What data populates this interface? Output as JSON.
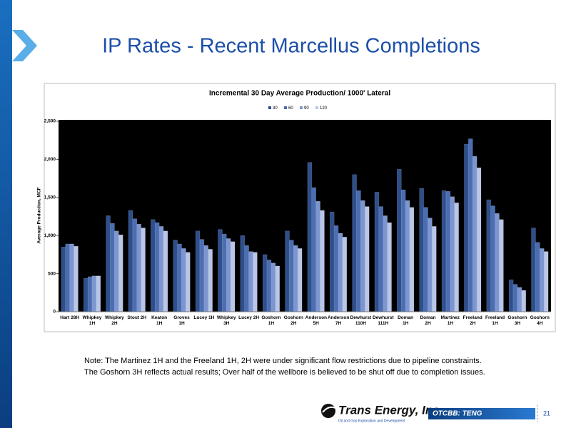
{
  "slide": {
    "title": "IP Rates - Recent Marcellus Completions",
    "note": [
      "Note: The Martinez 1H and the Freeland 1H, 2H were under significant flow restrictions due to pipeline constraints.",
      "The Goshorn 3H reflects actual results; Over half of the wellbore is believed to be shut off due to completion issues."
    ],
    "logo": {
      "name": "Trans Energy, Inc.",
      "tagline": "Oil and Gas Exploration and Development"
    },
    "ticker": "OTCBB: TENG",
    "page_number": 21
  },
  "chart_data": {
    "type": "bar",
    "title": "Incremental 30 Day Average Production/ 1000' Lateral",
    "y_label": "Average Production, MCF",
    "categories": [
      "Hart 28H",
      "Whipkey 1H",
      "Whipkey 2H",
      "Stout 2H",
      "Keaton 1H",
      "Groves 1H",
      "Lucey 1H",
      "Whipkey 3H",
      "Lucey 2H",
      "Goshorn 1H",
      "Goshorn 2H",
      "Anderson 5H",
      "Anderson 7H",
      "Dewhurst 110H",
      "Dewhurst 111H",
      "Doman 1H",
      "Doman 2H",
      "Martinez 1H",
      "Freeland 2H",
      "Freeland 1H",
      "Goshorn 3H",
      "Goshorn 4H"
    ],
    "series": [
      {
        "name": "30",
        "color": "#2e4f8c",
        "values": [
          850,
          440,
          1260,
          1330,
          1210,
          940,
          1060,
          1080,
          1000,
          750,
          1060,
          1960,
          1310,
          1800,
          1570,
          1870,
          1620,
          1590,
          2200,
          1470,
          420,
          1100
        ]
      },
      {
        "name": "60",
        "color": "#4a6db3",
        "values": [
          890,
          460,
          1160,
          1220,
          1170,
          890,
          950,
          1020,
          870,
          680,
          940,
          1630,
          1130,
          1590,
          1380,
          1600,
          1370,
          1580,
          2270,
          1390,
          360,
          910
        ]
      },
      {
        "name": "90",
        "color": "#7d96cf",
        "values": [
          890,
          470,
          1060,
          1150,
          1120,
          830,
          870,
          960,
          790,
          640,
          870,
          1450,
          1030,
          1460,
          1260,
          1460,
          1230,
          1510,
          2040,
          1290,
          320,
          830
        ]
      },
      {
        "name": "120",
        "color": "#b9c6e8",
        "values": [
          860,
          470,
          1010,
          1100,
          1060,
          780,
          820,
          920,
          780,
          600,
          830,
          1330,
          980,
          1380,
          1170,
          1370,
          1120,
          1430,
          1890,
          1210,
          280,
          790
        ]
      }
    ],
    "ylim": [
      0,
      2500
    ],
    "yticks": [
      0,
      500,
      {
        "value": 1000,
        "label": "1,000"
      },
      {
        "value": 1500,
        "label": "1,500"
      },
      {
        "value": 2000,
        "label": "2,000"
      },
      {
        "value": 2500,
        "label": "2,500"
      }
    ],
    "grid": false,
    "legend": "top"
  }
}
